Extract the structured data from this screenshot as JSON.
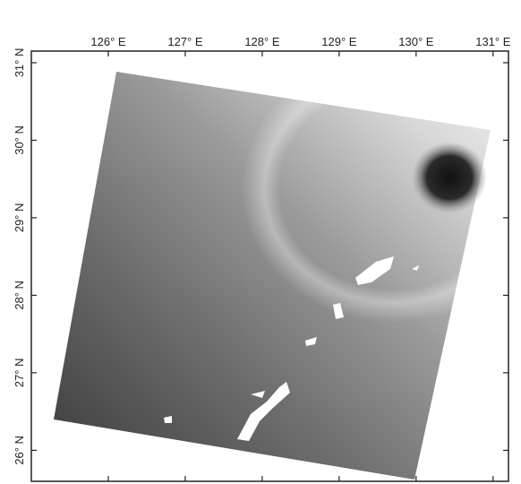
{
  "map": {
    "xlim": [
      125,
      131.2
    ],
    "ylim": [
      25.6,
      31.15
    ],
    "xticks": [
      {
        "value": 126,
        "label": "126° E"
      },
      {
        "value": 127,
        "label": "127° E"
      },
      {
        "value": 128,
        "label": "128° E"
      },
      {
        "value": 129,
        "label": "129° E"
      },
      {
        "value": 130,
        "label": "130° E"
      },
      {
        "value": 131,
        "label": "131° E"
      }
    ],
    "yticks": [
      {
        "value": 26,
        "label": "26° N"
      },
      {
        "value": 27,
        "label": "27° N"
      },
      {
        "value": 28,
        "label": "28° N"
      },
      {
        "value": 29,
        "label": "29° N"
      },
      {
        "value": 30,
        "label": "30° N"
      },
      {
        "value": 31,
        "label": "31° N"
      }
    ]
  }
}
